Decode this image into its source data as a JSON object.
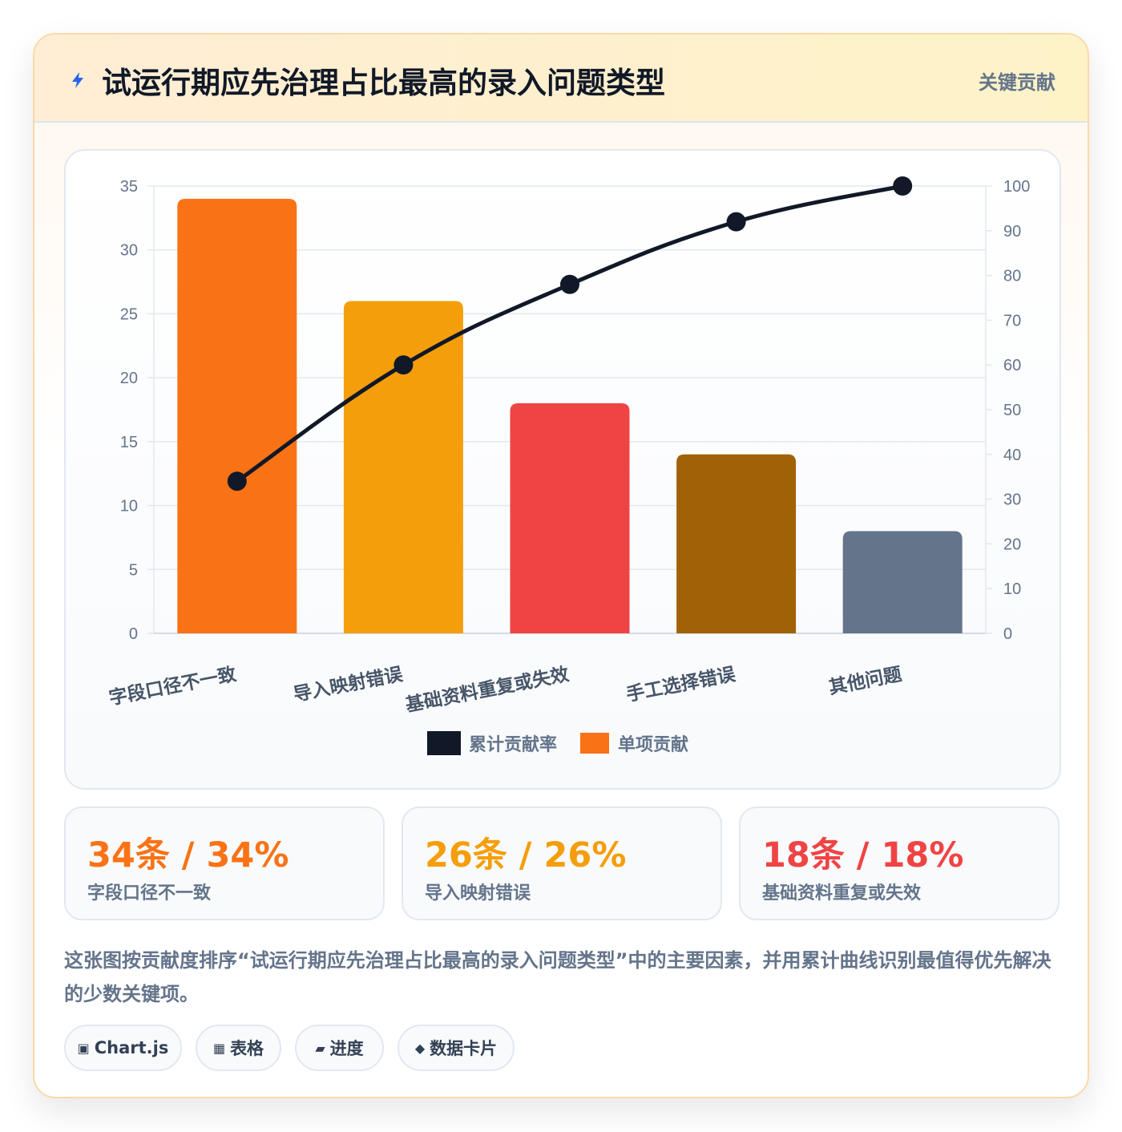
{
  "header": {
    "icon": "lightning-icon",
    "title": "试运行期应先治理占比最高的录入问题类型",
    "tag": "关键贡献"
  },
  "colors": {
    "bars": [
      "#f97316",
      "#f59e0b",
      "#ef4444",
      "#a16207",
      "#64748b"
    ],
    "line": "#111827"
  },
  "chart_data": {
    "type": "bar",
    "categories": [
      "字段口径不一致",
      "导入映射错误",
      "基础资料重复或失效",
      "手工选择错误",
      "其他问题"
    ],
    "series": [
      {
        "name": "单项贡献",
        "type": "bar",
        "axis": "left",
        "values": [
          34,
          26,
          18,
          14,
          8
        ]
      },
      {
        "name": "累计贡献率",
        "type": "line",
        "axis": "right",
        "values": [
          34,
          60,
          78,
          92,
          100
        ]
      }
    ],
    "y_left": {
      "min": 0,
      "max": 35,
      "ticks": [
        "0",
        "5",
        "10",
        "15",
        "20",
        "25",
        "30",
        "35"
      ]
    },
    "y_right": {
      "min": 0,
      "max": 100,
      "ticks": [
        "0",
        "10",
        "20",
        "30",
        "40",
        "50",
        "60",
        "70",
        "80",
        "90",
        "100"
      ]
    },
    "grid": true,
    "legend_position": "bottom",
    "legend": [
      "累计贡献率",
      "单项贡献"
    ]
  },
  "stats": [
    {
      "value": "34条 / 34%",
      "label": "字段口径不一致",
      "color": "#f97316"
    },
    {
      "value": "26条 / 26%",
      "label": "导入映射错误",
      "color": "#f59e0b"
    },
    {
      "value": "18条 / 18%",
      "label": "基础资料重复或失效",
      "color": "#ef4444"
    }
  ],
  "description": "这张图按贡献度排序“试运行期应先治理占比最高的录入问题类型”中的主要因素，并用累计曲线识别最值得优先解决的少数关键项。",
  "chips": [
    {
      "icon": "▣",
      "label": "Chart.js"
    },
    {
      "icon": "▦",
      "label": "表格"
    },
    {
      "icon": "▰",
      "label": "进度"
    },
    {
      "icon": "◆",
      "label": "数据卡片"
    }
  ]
}
